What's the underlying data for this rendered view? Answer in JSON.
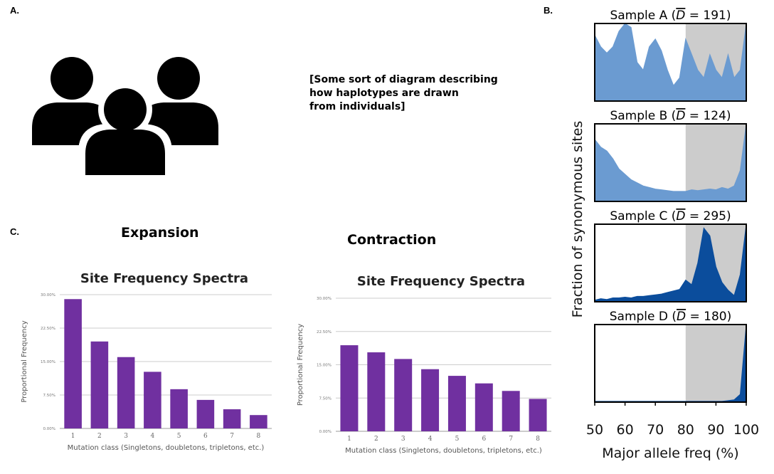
{
  "labels": {
    "a": "A.",
    "b": "B.",
    "c": "C."
  },
  "placeholder_text": [
    "[Some sort of diagram describing",
    "how haplotypes are drawn",
    "from individuals]"
  ],
  "icon": "people-group-icon",
  "sections": {
    "expansion": "Expansion",
    "contraction": "Contraction"
  },
  "colors": {
    "bar": "#7030a0",
    "hist_light": "#6b9bd1",
    "hist_dark": "#0b4d9c",
    "shade": "#cccccc"
  },
  "chart_data": [
    {
      "id": "expansion",
      "type": "bar",
      "title": "Site Frequency Spectra",
      "xlabel": "Mutation class (Singletons, doubletons, tripletons, etc.)",
      "ylabel": "Proportional Frequency",
      "ylim": [
        0,
        0.3
      ],
      "yticks": [
        "0.00%",
        "7.50%",
        "15.00%",
        "22.50%",
        "30.00%"
      ],
      "categories": [
        "1",
        "2",
        "3",
        "4",
        "5",
        "6",
        "7",
        "8"
      ],
      "values": [
        0.29,
        0.195,
        0.16,
        0.127,
        0.088,
        0.064,
        0.043,
        0.03
      ],
      "grid": true
    },
    {
      "id": "contraction",
      "type": "bar",
      "title": "Site Frequency Spectra",
      "xlabel": "Mutation class (Singletons, doubletons, tripletons, etc.)",
      "ylabel": "Proportional Frequency",
      "ylim": [
        0,
        0.3
      ],
      "yticks": [
        "0.00%",
        "7.50%",
        "15.00%",
        "22.50%",
        "30.00%"
      ],
      "categories": [
        "1",
        "2",
        "3",
        "4",
        "5",
        "6",
        "7",
        "8"
      ],
      "values": [
        0.194,
        0.178,
        0.163,
        0.14,
        0.125,
        0.108,
        0.091,
        0.073
      ],
      "grid": true
    },
    {
      "id": "histograms",
      "type": "area",
      "xlabel": "Major allele freq (%)",
      "ylabel": "Fraction of synonymous sites",
      "xlim": [
        50,
        100
      ],
      "xticks": [
        "50",
        "60",
        "70",
        "80",
        "90",
        "100"
      ],
      "shaded_region": [
        80,
        100
      ],
      "panels": [
        {
          "title_prefix": "Sample A (",
          "title_dbar": "D",
          "title_value": " = 191)",
          "color": "light",
          "x": [
            50,
            52,
            54,
            56,
            58,
            60,
            62,
            64,
            66,
            68,
            70,
            72,
            74,
            76,
            78,
            80,
            82,
            84,
            86,
            88,
            90,
            92,
            94,
            96,
            98,
            100
          ],
          "y": [
            0.85,
            0.7,
            0.62,
            0.7,
            0.9,
            1.0,
            0.95,
            0.5,
            0.4,
            0.7,
            0.8,
            0.65,
            0.4,
            0.2,
            0.3,
            0.8,
            0.6,
            0.4,
            0.3,
            0.6,
            0.4,
            0.3,
            0.6,
            0.3,
            0.4,
            1.0
          ]
        },
        {
          "title_prefix": "Sample B (",
          "title_dbar": "D",
          "title_value": " = 124)",
          "color": "light",
          "x": [
            50,
            52,
            54,
            56,
            58,
            60,
            62,
            64,
            66,
            68,
            70,
            72,
            74,
            76,
            78,
            80,
            82,
            84,
            86,
            88,
            90,
            92,
            94,
            96,
            98,
            100
          ],
          "y": [
            0.8,
            0.7,
            0.65,
            0.55,
            0.42,
            0.35,
            0.28,
            0.24,
            0.2,
            0.18,
            0.16,
            0.15,
            0.14,
            0.13,
            0.13,
            0.13,
            0.15,
            0.14,
            0.15,
            0.16,
            0.15,
            0.18,
            0.16,
            0.2,
            0.4,
            1.0
          ]
        },
        {
          "title_prefix": "Sample C (",
          "title_dbar": "D",
          "title_value": " = 295)",
          "color": "dark",
          "x": [
            50,
            52,
            54,
            56,
            58,
            60,
            62,
            64,
            66,
            68,
            70,
            72,
            74,
            76,
            78,
            80,
            82,
            84,
            86,
            88,
            90,
            92,
            94,
            96,
            98,
            100
          ],
          "y": [
            0.02,
            0.04,
            0.03,
            0.05,
            0.05,
            0.06,
            0.05,
            0.07,
            0.07,
            0.08,
            0.09,
            0.1,
            0.12,
            0.14,
            0.16,
            0.28,
            0.22,
            0.5,
            0.95,
            0.85,
            0.45,
            0.25,
            0.15,
            0.08,
            0.35,
            1.0
          ]
        },
        {
          "title_prefix": "Sample D (",
          "title_dbar": "D",
          "title_value": " = 180)",
          "color": "dark",
          "x": [
            50,
            52,
            54,
            56,
            58,
            60,
            62,
            64,
            66,
            68,
            70,
            72,
            74,
            76,
            78,
            80,
            82,
            84,
            86,
            88,
            90,
            92,
            94,
            96,
            98,
            100
          ],
          "y": [
            0.01,
            0.01,
            0.01,
            0.01,
            0.01,
            0.01,
            0.01,
            0.01,
            0.01,
            0.01,
            0.01,
            0.01,
            0.01,
            0.01,
            0.01,
            0.01,
            0.01,
            0.01,
            0.01,
            0.01,
            0.01,
            0.01,
            0.02,
            0.03,
            0.1,
            1.0
          ]
        }
      ]
    }
  ]
}
